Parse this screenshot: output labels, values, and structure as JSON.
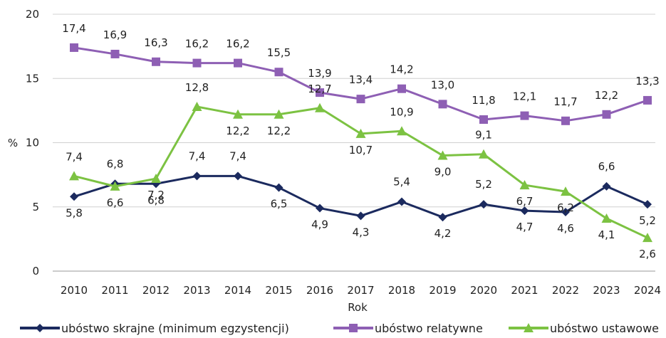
{
  "chart_data": {
    "type": "line",
    "title": "",
    "xlabel": "Rok",
    "ylabel": "%",
    "ylim": [
      0,
      20
    ],
    "yticks": [
      0,
      5,
      10,
      15,
      20
    ],
    "grid": "horizontal",
    "legend_position": "bottom",
    "x": [
      2010,
      2011,
      2012,
      2013,
      2014,
      2015,
      2016,
      2017,
      2018,
      2019,
      2020,
      2021,
      2022,
      2023,
      2024
    ],
    "series": [
      {
        "name": "ubóstwo skrajne (minimum egzystencji)",
        "color": "#1b2a5e",
        "marker": "diamond",
        "values": [
          5.8,
          6.8,
          6.8,
          7.4,
          7.4,
          6.5,
          4.9,
          4.3,
          5.4,
          4.2,
          5.2,
          4.7,
          4.6,
          6.6,
          5.2
        ],
        "labels": [
          "5,8",
          "6,8",
          "6,8",
          "7,4",
          "7,4",
          "6,5",
          "4,9",
          "4,3",
          "5,4",
          "4,2",
          "5,2",
          "4,7",
          "4,6",
          "6,6",
          "5,2"
        ]
      },
      {
        "name": "ubóstwo relatywne",
        "color": "#8e5fb4",
        "marker": "square",
        "values": [
          17.4,
          16.9,
          16.3,
          16.2,
          16.2,
          15.5,
          13.9,
          13.4,
          14.2,
          13.0,
          11.8,
          12.1,
          11.7,
          12.2,
          13.3
        ],
        "labels": [
          "17,4",
          "16,9",
          "16,3",
          "16,2",
          "16,2",
          "15,5",
          "13,9",
          "13,4",
          "14,2",
          "13,0",
          "11,8",
          "12,1",
          "11,7",
          "12,2",
          "13,3"
        ]
      },
      {
        "name": "ubóstwo ustawowe",
        "color": "#7cc242",
        "marker": "triangle",
        "values": [
          7.4,
          6.6,
          7.2,
          12.8,
          12.2,
          12.2,
          12.7,
          10.7,
          10.9,
          9.0,
          9.1,
          6.7,
          6.2,
          4.1,
          2.6
        ],
        "labels": [
          "7,4",
          "6,6",
          "7,2",
          "12,8",
          "12,2",
          "12,2",
          "12,7",
          "10,7",
          "10,9",
          "9,0",
          "9,1",
          "6,7",
          "6,2",
          "4,1",
          "2,6"
        ]
      }
    ]
  }
}
